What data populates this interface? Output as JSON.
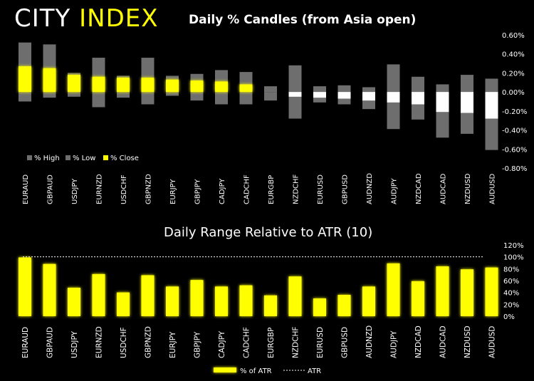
{
  "brand": {
    "part1": "CITY",
    "part2": "INDEX"
  },
  "colors": {
    "bg": "#000000",
    "yellow": "#ffff00",
    "gray": "#6e6e6e",
    "white": "#ffffff"
  },
  "chart_data": [
    {
      "type": "bar",
      "title": "Daily % Candles (from Asia open)",
      "categories": [
        "EURAUD",
        "GBPAUD",
        "USDJPY",
        "EURNZD",
        "USDCHF",
        "GBPNZD",
        "EURJPY",
        "GBPJPY",
        "CADJPY",
        "CADCHF",
        "EURGBP",
        "NZDCHF",
        "EURUSD",
        "GBPUSD",
        "AUDNZD",
        "AUDJPY",
        "NZDCAD",
        "AUDCAD",
        "NZDUSD",
        "AUDUSD"
      ],
      "series": [
        {
          "name": "% High",
          "values": [
            0.52,
            0.5,
            0.2,
            0.36,
            0.17,
            0.36,
            0.17,
            0.19,
            0.23,
            0.21,
            0.06,
            0.28,
            0.06,
            0.07,
            0.05,
            0.29,
            0.16,
            0.08,
            0.18,
            0.14
          ]
        },
        {
          "name": "% Low",
          "values": [
            -0.1,
            -0.06,
            -0.05,
            -0.16,
            -0.06,
            -0.13,
            -0.04,
            -0.09,
            -0.13,
            -0.13,
            -0.09,
            -0.28,
            -0.11,
            -0.13,
            -0.18,
            -0.39,
            -0.29,
            -0.48,
            -0.44,
            -0.61
          ]
        },
        {
          "name": "% Close",
          "values": [
            0.27,
            0.25,
            0.18,
            0.16,
            0.15,
            0.15,
            0.13,
            0.12,
            0.11,
            0.08,
            0.0,
            -0.05,
            -0.06,
            -0.07,
            -0.09,
            -0.11,
            -0.13,
            -0.21,
            -0.22,
            -0.28
          ]
        }
      ],
      "ylim": [
        -0.8,
        0.6
      ],
      "yticks": [
        "0.60%",
        "0.40%",
        "0.20%",
        "0.00%",
        "-0.20%",
        "-0.40%",
        "-0.60%",
        "-0.80%"
      ],
      "legend": [
        "% High",
        "% Low",
        "% Close"
      ]
    },
    {
      "type": "bar",
      "title": "Daily Range Relative to ATR (10)",
      "categories": [
        "EURAUD",
        "GBPAUD",
        "USDJPY",
        "EURNZD",
        "USDCHF",
        "GBPNZD",
        "EURJPY",
        "GBPJPY",
        "CADJPY",
        "CADCHF",
        "EURGBP",
        "NZDCHF",
        "EURUSD",
        "GBPUSD",
        "AUDNZD",
        "AUDJPY",
        "NZDCAD",
        "AUDCAD",
        "NZDUSD",
        "AUDUSD"
      ],
      "series": [
        {
          "name": "% of ATR",
          "values": [
            99,
            88,
            48,
            71,
            40,
            69,
            50,
            61,
            50,
            52,
            35,
            67,
            30,
            36,
            50,
            89,
            59,
            84,
            79,
            82
          ]
        }
      ],
      "atr_level": 100,
      "ylim": [
        0,
        120
      ],
      "yticks": [
        "120%",
        "100%",
        "80%",
        "60%",
        "40%",
        "20%",
        "0%"
      ],
      "legend": [
        "% of ATR",
        "ATR"
      ]
    }
  ]
}
